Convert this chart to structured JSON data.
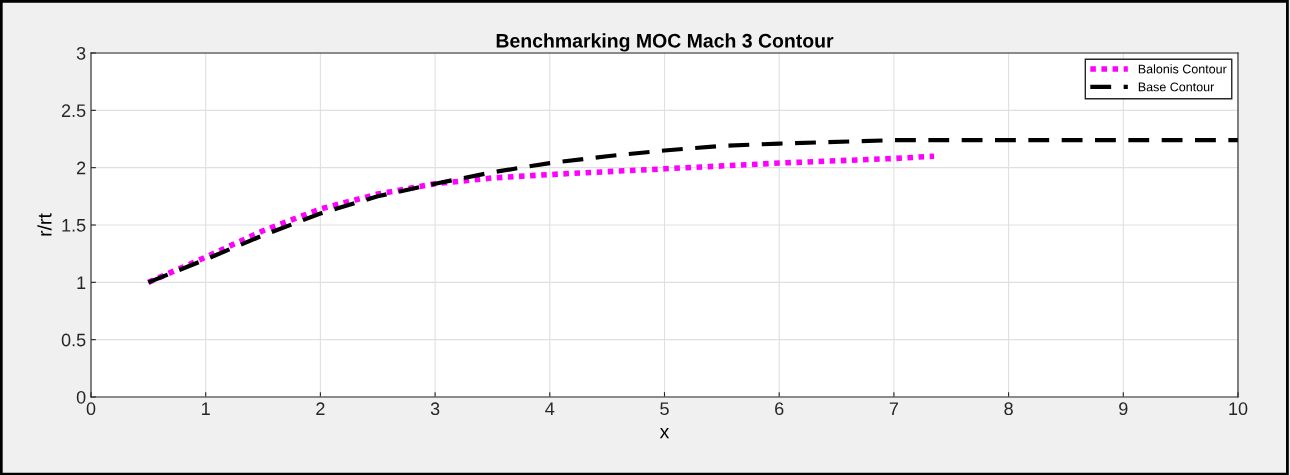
{
  "chart_data": {
    "type": "line",
    "title": "Benchmarking MOC Mach 3 Contour",
    "xlabel": "x",
    "ylabel": "r/rt",
    "xlim": [
      0,
      10
    ],
    "ylim": [
      0,
      3
    ],
    "xticks": [
      0,
      1,
      2,
      3,
      4,
      5,
      6,
      7,
      8,
      9,
      10
    ],
    "yticks": [
      0,
      0.5,
      1,
      1.5,
      2,
      2.5,
      3
    ],
    "grid": true,
    "legend": "top right",
    "series": [
      {
        "name": "Balonis Contour",
        "color": "#ff00ff",
        "line_style": "dotted",
        "x": [
          0.5,
          1,
          1.5,
          2,
          2.5,
          3,
          3.5,
          4,
          5,
          6,
          7,
          7.35
        ],
        "values": [
          1.0,
          1.22,
          1.45,
          1.64,
          1.77,
          1.86,
          1.91,
          1.94,
          1.99,
          2.04,
          2.08,
          2.1
        ]
      },
      {
        "name": "Base Contour",
        "color": "#000000",
        "line_style": "dashed",
        "x": [
          0.5,
          1,
          1.5,
          2,
          2.5,
          3,
          3.5,
          4,
          4.5,
          5,
          5.5,
          6,
          7,
          8,
          10
        ],
        "values": [
          1.0,
          1.2,
          1.41,
          1.6,
          1.75,
          1.86,
          1.96,
          2.04,
          2.1,
          2.15,
          2.19,
          2.21,
          2.24,
          2.24,
          2.24
        ]
      }
    ]
  }
}
